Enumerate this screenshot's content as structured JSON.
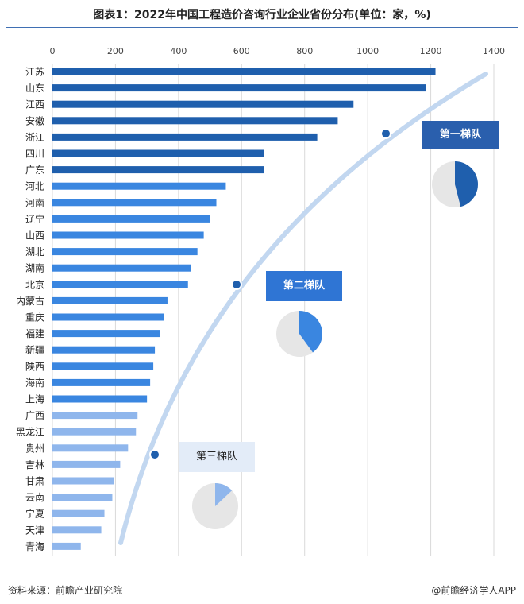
{
  "title": "图表1：2022年中国工程造价咨询行业企业省份分布(单位：家，%)",
  "footer": {
    "source": "资料来源：前瞻产业研究院",
    "brand": "@前瞻经济学人APP"
  },
  "tiers": [
    {
      "label": "第一梯队",
      "pie_fraction": 0.46,
      "color": "#1f5fad"
    },
    {
      "label": "第二梯队",
      "pie_fraction": 0.4,
      "color": "#3a86e0"
    },
    {
      "label": "第三梯队",
      "pie_fraction": 0.13,
      "color": "#8fb6ec"
    }
  ],
  "chart_data": {
    "type": "bar",
    "orientation": "horizontal",
    "title": "图表1：2022年中国工程造价咨询行业企业省份分布(单位：家，%)",
    "xlim": [
      0,
      1400
    ],
    "xticks": [
      0,
      200,
      400,
      600,
      800,
      1000,
      1200,
      1400
    ],
    "xaxis_position": "top",
    "grid": "vertical",
    "categories": [
      "江苏",
      "山东",
      "江西",
      "安徽",
      "浙江",
      "四川",
      "广东",
      "河北",
      "河南",
      "辽宁",
      "山西",
      "湖北",
      "湖南",
      "北京",
      "内蒙古",
      "重庆",
      "福建",
      "新疆",
      "陕西",
      "海南",
      "上海",
      "广西",
      "黑龙江",
      "贵州",
      "吉林",
      "甘肃",
      "云南",
      "宁夏",
      "天津",
      "青海"
    ],
    "values": [
      1215,
      1185,
      955,
      905,
      840,
      670,
      670,
      550,
      520,
      500,
      480,
      460,
      440,
      430,
      365,
      355,
      340,
      325,
      320,
      310,
      300,
      270,
      265,
      240,
      215,
      195,
      190,
      165,
      155,
      90
    ],
    "tier_of_category": [
      1,
      1,
      1,
      1,
      1,
      1,
      1,
      2,
      2,
      2,
      2,
      2,
      2,
      2,
      2,
      2,
      2,
      2,
      2,
      2,
      2,
      3,
      3,
      3,
      3,
      3,
      3,
      3,
      3,
      3
    ],
    "tier_colors": [
      "#1f5fad",
      "#3a86e0",
      "#8fb6ec"
    ]
  }
}
